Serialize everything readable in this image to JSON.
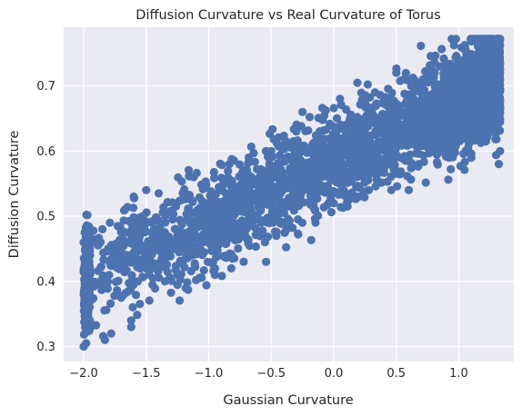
{
  "chart_data": {
    "type": "scatter",
    "title": "Diffusion Curvature vs Real Curvature of Torus",
    "xlabel": "Gaussian Curvature",
    "ylabel": "Diffusion Curvature",
    "xlim": [
      -2.16,
      1.44
    ],
    "ylim": [
      0.277,
      0.79
    ],
    "xticks": [
      -2.0,
      -1.5,
      -1.0,
      -0.5,
      0.0,
      0.5,
      1.0
    ],
    "xtick_labels": [
      "−2.0",
      "−1.5",
      "−1.0",
      "−0.5",
      "0.0",
      "0.5",
      "1.0"
    ],
    "yticks": [
      0.3,
      0.4,
      0.5,
      0.6,
      0.7
    ],
    "ytick_labels": [
      "0.3",
      "0.4",
      "0.5",
      "0.6",
      "0.7"
    ],
    "grid": true,
    "series": [
      {
        "color": "#4c72b0",
        "x_range": [
          -2.0,
          1.33
        ],
        "approx_trend": {
          "slope": 0.092,
          "intercept": 0.585
        },
        "approx_spread": 0.05,
        "points": [
          [
            -2.0,
            0.3
          ],
          [
            -1.98,
            0.305
          ],
          [
            -2.0,
            0.46
          ],
          [
            -1.95,
            0.44
          ],
          [
            -1.83,
            0.31
          ],
          [
            -1.78,
            0.32
          ],
          [
            -1.85,
            0.48
          ],
          [
            -1.79,
            0.49
          ],
          [
            -1.62,
            0.33
          ],
          [
            -1.62,
            0.34
          ],
          [
            -1.67,
            0.51
          ],
          [
            -1.6,
            0.53
          ],
          [
            -1.5,
            0.54
          ],
          [
            -1.4,
            0.535
          ],
          [
            -1.45,
            0.395
          ],
          [
            -1.35,
            0.4
          ],
          [
            -1.25,
            0.41
          ],
          [
            -1.12,
            0.56
          ],
          [
            -0.95,
            0.41
          ],
          [
            -0.82,
            0.42
          ],
          [
            -0.72,
            0.43
          ],
          [
            -0.68,
            0.59
          ],
          [
            -0.55,
            0.46
          ],
          [
            -0.5,
            0.6
          ],
          [
            -0.46,
            0.47
          ],
          [
            -0.3,
            0.63
          ],
          [
            -0.25,
            0.66
          ],
          [
            -0.15,
            0.51
          ],
          [
            0.0,
            0.52
          ],
          [
            0.05,
            0.68
          ],
          [
            0.12,
            0.525
          ],
          [
            0.2,
            0.53
          ],
          [
            0.28,
            0.54
          ],
          [
            0.33,
            0.69
          ],
          [
            0.46,
            0.54
          ],
          [
            0.5,
            0.72
          ],
          [
            0.6,
            0.54
          ],
          [
            0.68,
            0.58
          ],
          [
            0.8,
            0.715
          ],
          [
            0.92,
            0.59
          ],
          [
            1.0,
            0.74
          ],
          [
            1.1,
            0.59
          ],
          [
            1.2,
            0.765
          ],
          [
            1.28,
            0.77
          ],
          [
            1.32,
            0.58
          ],
          [
            1.33,
            0.6
          ]
        ]
      }
    ]
  }
}
